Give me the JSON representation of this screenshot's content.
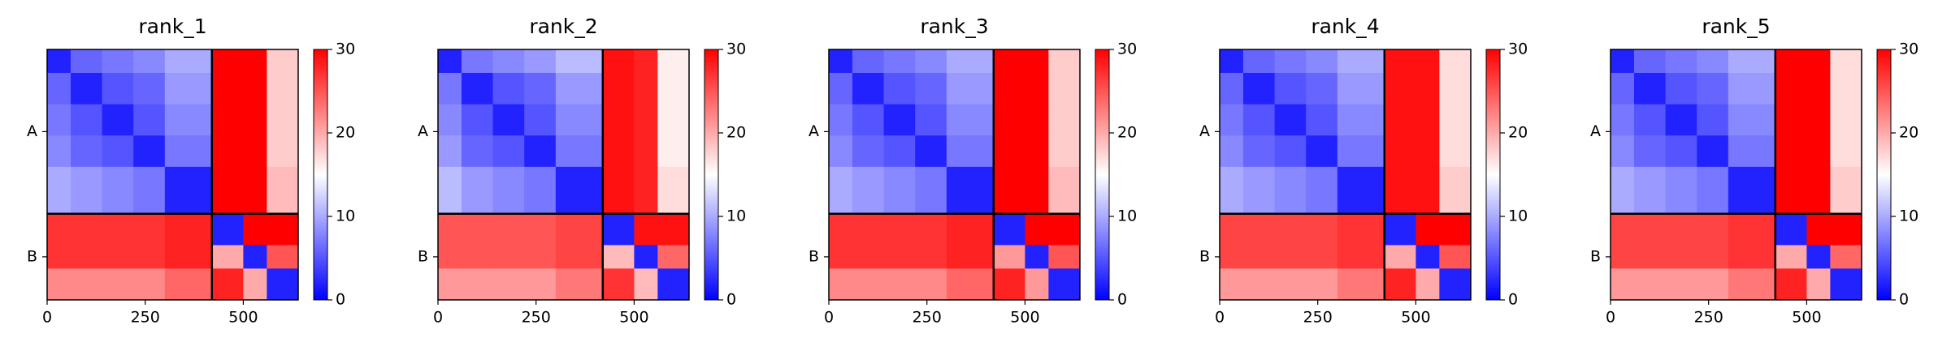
{
  "chart_data": [
    {
      "type": "heatmap",
      "title": "rank_1",
      "colormap": "bwr",
      "clim": [
        0,
        30
      ],
      "cticks": [
        0,
        10,
        20,
        30
      ],
      "bins": [
        0,
        60,
        140,
        220,
        300,
        420,
        500,
        560,
        640
      ],
      "xlim": [
        0,
        640
      ],
      "ylim": [
        640,
        0
      ],
      "xticks": [
        0,
        250,
        500
      ],
      "yticks": [
        {
          "value": 210,
          "label": "A"
        },
        {
          "value": 530,
          "label": "B"
        }
      ],
      "chain_breaks": [
        420
      ],
      "values": [
        [
          2,
          6,
          7,
          8,
          10,
          30,
          30,
          18
        ],
        [
          6,
          2,
          5,
          6,
          9,
          30,
          30,
          18
        ],
        [
          7,
          5,
          2,
          5,
          8,
          30,
          30,
          18
        ],
        [
          8,
          6,
          5,
          2,
          7,
          30,
          30,
          18
        ],
        [
          10,
          9,
          8,
          7,
          2,
          30,
          30,
          19
        ],
        [
          27,
          27,
          27,
          27,
          28,
          2,
          30,
          30
        ],
        [
          27,
          27,
          27,
          27,
          28,
          20,
          2,
          25
        ],
        [
          22,
          22,
          22,
          22,
          24,
          28,
          20,
          2
        ]
      ]
    },
    {
      "type": "heatmap",
      "title": "rank_2",
      "colormap": "bwr",
      "clim": [
        0,
        30
      ],
      "cticks": [
        0,
        10,
        20,
        30
      ],
      "bins": [
        0,
        60,
        140,
        220,
        300,
        420,
        500,
        560,
        640
      ],
      "xlim": [
        0,
        640
      ],
      "ylim": [
        640,
        0
      ],
      "xticks": [
        0,
        250,
        500
      ],
      "yticks": [
        {
          "value": 210,
          "label": "A"
        },
        {
          "value": 530,
          "label": "B"
        }
      ],
      "chain_breaks": [
        420
      ],
      "values": [
        [
          2,
          7,
          8,
          9,
          11,
          29,
          28,
          16
        ],
        [
          7,
          2,
          5,
          6,
          9,
          29,
          28,
          16
        ],
        [
          8,
          5,
          2,
          5,
          8,
          29,
          28,
          16
        ],
        [
          9,
          6,
          5,
          2,
          7,
          29,
          28,
          16
        ],
        [
          11,
          9,
          8,
          7,
          2,
          29,
          28,
          17
        ],
        [
          25,
          25,
          25,
          25,
          26,
          2,
          29,
          29
        ],
        [
          25,
          25,
          25,
          25,
          26,
          19,
          2,
          24
        ],
        [
          21,
          21,
          21,
          21,
          23,
          27,
          19,
          2
        ]
      ]
    },
    {
      "type": "heatmap",
      "title": "rank_3",
      "colormap": "bwr",
      "clim": [
        0,
        30
      ],
      "cticks": [
        0,
        10,
        20,
        30
      ],
      "bins": [
        0,
        60,
        140,
        220,
        300,
        420,
        500,
        560,
        640
      ],
      "xlim": [
        0,
        640
      ],
      "ylim": [
        640,
        0
      ],
      "xticks": [
        0,
        250,
        500
      ],
      "yticks": [
        {
          "value": 210,
          "label": "A"
        },
        {
          "value": 530,
          "label": "B"
        }
      ],
      "chain_breaks": [
        420
      ],
      "values": [
        [
          2,
          6,
          7,
          8,
          10,
          30,
          30,
          18
        ],
        [
          6,
          2,
          5,
          6,
          9,
          30,
          30,
          18
        ],
        [
          7,
          5,
          2,
          5,
          8,
          30,
          30,
          18
        ],
        [
          8,
          6,
          5,
          2,
          7,
          30,
          30,
          18
        ],
        [
          10,
          9,
          8,
          7,
          2,
          30,
          30,
          19
        ],
        [
          27,
          27,
          27,
          27,
          28,
          2,
          30,
          30
        ],
        [
          27,
          27,
          27,
          27,
          28,
          21,
          2,
          25
        ],
        [
          22,
          22,
          22,
          22,
          24,
          28,
          21,
          2
        ]
      ]
    },
    {
      "type": "heatmap",
      "title": "rank_4",
      "colormap": "bwr",
      "clim": [
        0,
        30
      ],
      "cticks": [
        0,
        10,
        20,
        30
      ],
      "bins": [
        0,
        60,
        140,
        220,
        300,
        420,
        500,
        560,
        640
      ],
      "xlim": [
        0,
        640
      ],
      "ylim": [
        640,
        0
      ],
      "xticks": [
        0,
        250,
        500
      ],
      "yticks": [
        {
          "value": 210,
          "label": "A"
        },
        {
          "value": 530,
          "label": "B"
        }
      ],
      "chain_breaks": [
        420
      ],
      "values": [
        [
          2,
          6,
          7,
          8,
          10,
          29,
          29,
          17
        ],
        [
          6,
          2,
          5,
          6,
          9,
          29,
          29,
          17
        ],
        [
          7,
          5,
          2,
          5,
          8,
          29,
          29,
          17
        ],
        [
          8,
          6,
          5,
          2,
          7,
          29,
          29,
          17
        ],
        [
          10,
          9,
          8,
          7,
          2,
          29,
          29,
          18
        ],
        [
          26,
          26,
          26,
          26,
          27,
          2,
          30,
          30
        ],
        [
          26,
          26,
          26,
          26,
          27,
          20,
          2,
          25
        ],
        [
          21,
          21,
          21,
          21,
          23,
          28,
          20,
          2
        ]
      ]
    },
    {
      "type": "heatmap",
      "title": "rank_5",
      "colormap": "bwr",
      "clim": [
        0,
        30
      ],
      "cticks": [
        0,
        10,
        20,
        30
      ],
      "bins": [
        0,
        60,
        140,
        220,
        300,
        420,
        500,
        560,
        640
      ],
      "xlim": [
        0,
        640
      ],
      "ylim": [
        640,
        0
      ],
      "xticks": [
        0,
        250,
        500
      ],
      "yticks": [
        {
          "value": 210,
          "label": "A"
        },
        {
          "value": 530,
          "label": "B"
        }
      ],
      "chain_breaks": [
        420
      ],
      "values": [
        [
          2,
          6,
          7,
          8,
          10,
          30,
          30,
          17
        ],
        [
          6,
          2,
          5,
          6,
          9,
          30,
          30,
          17
        ],
        [
          7,
          5,
          2,
          5,
          8,
          30,
          30,
          17
        ],
        [
          8,
          6,
          5,
          2,
          7,
          30,
          30,
          17
        ],
        [
          10,
          9,
          8,
          7,
          2,
          30,
          30,
          18
        ],
        [
          26,
          26,
          26,
          26,
          27,
          2,
          30,
          30
        ],
        [
          26,
          26,
          26,
          26,
          27,
          20,
          2,
          24
        ],
        [
          21,
          21,
          21,
          21,
          23,
          28,
          20,
          2
        ]
      ]
    }
  ]
}
